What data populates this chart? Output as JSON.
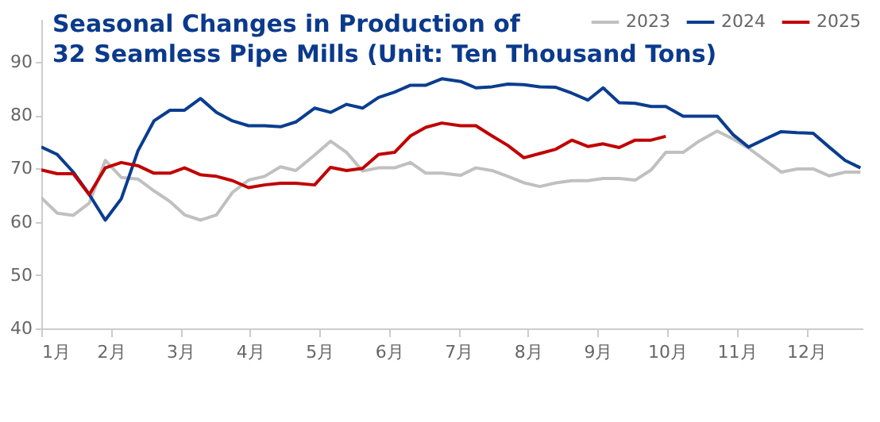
{
  "chart_data": {
    "type": "line",
    "title": [
      "Seasonal Changes in Production of",
      "32 Seamless Pipe Mills (Unit: Ten Thousand Tons)"
    ],
    "x": [
      1.0,
      1.23,
      1.46,
      1.69,
      1.92,
      2.15,
      2.39,
      2.62,
      2.85,
      3.06,
      3.29,
      3.52,
      3.75,
      3.98,
      4.21,
      4.44,
      4.66,
      4.93,
      5.16,
      5.39,
      5.62,
      5.85,
      6.08,
      6.31,
      6.53,
      6.76,
      7.03,
      7.25,
      7.48,
      7.71,
      7.94,
      8.17,
      8.4,
      8.63,
      8.86,
      9.08,
      9.31,
      9.54,
      9.77,
      9.98,
      10.23,
      10.46,
      10.72,
      10.95,
      11.17,
      11.41,
      11.64,
      11.87,
      12.1,
      12.33,
      12.56,
      12.78
    ],
    "series": [
      {
        "name": "2023",
        "color": "#c0c0c0",
        "values": [
          64.5,
          61.6,
          61.2,
          63.5,
          71.5,
          68.3,
          68.0,
          65.8,
          63.8,
          61.3,
          60.3,
          61.3,
          65.5,
          67.8,
          68.5,
          70.3,
          69.6,
          72.5,
          75.1,
          73.0,
          69.5,
          70.1,
          70.1,
          71.1,
          69.1,
          69.1,
          68.7,
          70.1,
          69.6,
          68.5,
          67.3,
          66.6,
          67.3,
          67.7,
          67.7,
          68.1,
          68.1,
          67.8,
          69.7,
          73.0,
          73.0,
          75.1,
          77.0,
          75.5,
          73.8,
          71.5,
          69.3,
          69.9,
          69.9,
          68.6,
          69.3,
          69.3
        ]
      },
      {
        "name": "2024",
        "color": "#0a3d8f",
        "values": [
          74.0,
          72.6,
          69.3,
          65.1,
          60.3,
          64.3,
          73.3,
          78.9,
          80.9,
          80.9,
          83.1,
          80.5,
          78.9,
          78.0,
          78.0,
          77.8,
          78.7,
          81.3,
          80.5,
          82.0,
          81.3,
          83.3,
          84.3,
          85.6,
          85.6,
          86.8,
          86.3,
          85.1,
          85.3,
          85.8,
          85.7,
          85.3,
          85.2,
          84.1,
          82.8,
          85.1,
          82.3,
          82.2,
          81.6,
          81.6,
          79.8,
          79.8,
          79.8,
          76.3,
          74.0,
          75.5,
          76.9,
          76.7,
          76.6,
          74.0,
          71.5,
          70.1
        ]
      },
      {
        "name": "2025",
        "color": "#c00000",
        "values": [
          69.7,
          69.0,
          69.0,
          65.1,
          70.1,
          71.1,
          70.5,
          69.1,
          69.1,
          70.1,
          68.8,
          68.5,
          67.7,
          66.4,
          66.9,
          67.2,
          67.2,
          66.9,
          70.2,
          69.6,
          70.0,
          72.6,
          73.0,
          76.1,
          77.7,
          78.5,
          78.0,
          78.0,
          76.1,
          74.3,
          72.0,
          72.8,
          73.6,
          75.3,
          74.1,
          74.6,
          73.9,
          75.3,
          75.3,
          76.0,
          null,
          null,
          null,
          null,
          null,
          null,
          null,
          null,
          null,
          null,
          null,
          null
        ]
      }
    ],
    "xlim": [
      1,
      12.81
    ],
    "xticks": [
      {
        "value": 1,
        "label": "1月"
      },
      {
        "value": 2,
        "label": "2月"
      },
      {
        "value": 3,
        "label": "3月"
      },
      {
        "value": 4,
        "label": "4月"
      },
      {
        "value": 5,
        "label": "5月"
      },
      {
        "value": 6,
        "label": "6月"
      },
      {
        "value": 7,
        "label": "7月"
      },
      {
        "value": 8,
        "label": "8月"
      },
      {
        "value": 9,
        "label": "9月"
      },
      {
        "value": 10,
        "label": "10月"
      },
      {
        "value": 11,
        "label": "11月"
      },
      {
        "value": 12,
        "label": "12月"
      }
    ],
    "ylim": [
      40,
      98
    ],
    "yticks": [
      40,
      50,
      60,
      70,
      80,
      90
    ],
    "grid": false,
    "legend": "top right",
    "line_style": "solid",
    "marker": "none"
  }
}
